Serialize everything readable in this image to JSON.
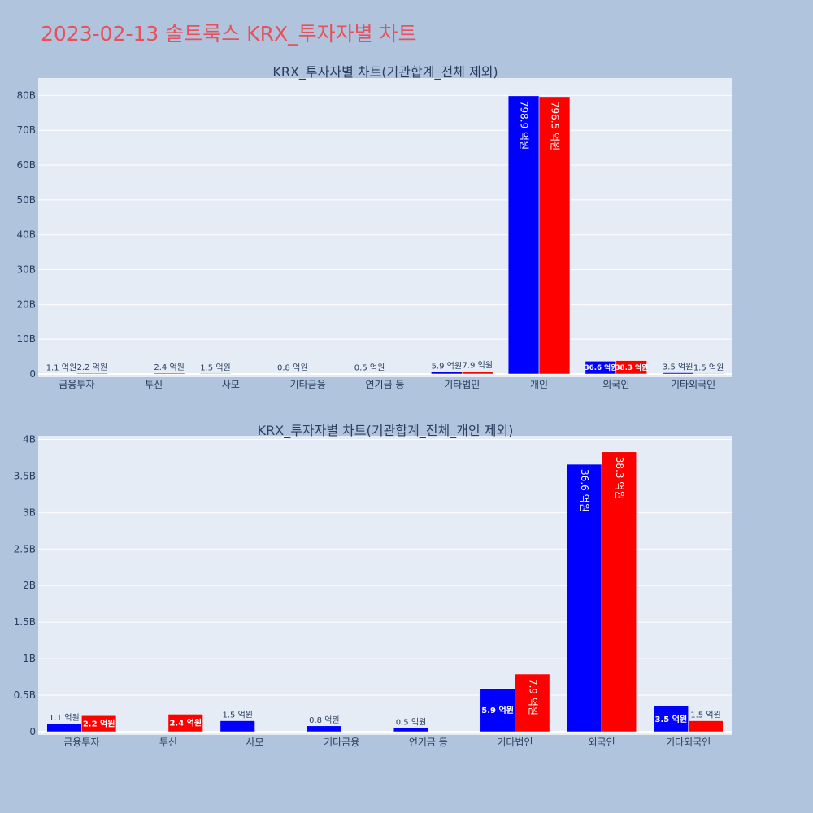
{
  "page": {
    "title": "2023-02-13 솔트룩스 KRX_투자자별 차트"
  },
  "colors": {
    "background": "#b0c4de",
    "plot_bg": "#e5ecf6",
    "grid": "#ffffff",
    "title": "#e8505b",
    "buy": "#0000ff",
    "sell": "#ff0000",
    "text": "#2a3f5f"
  },
  "chart_data": [
    {
      "type": "bar",
      "title": "KRX_투자자별 차트(기관합계_전체 제외)",
      "categories": [
        "금융투자",
        "투신",
        "사모",
        "기타금융",
        "연기금 등",
        "기타법인",
        "개인",
        "외국인",
        "기타외국인"
      ],
      "series": [
        {
          "color": "#0000ff",
          "values": [
            110000000,
            null,
            150000000,
            80000000,
            50000000,
            590000000,
            79890000000,
            3660000000,
            350000000
          ],
          "labels": [
            "1.1 억원",
            null,
            "1.5 억원",
            "0.8 억원",
            "0.5 억원",
            "5.9 억원",
            "798.9 억원",
            "36.6 억원",
            "3.5 억원"
          ]
        },
        {
          "color": "#ff0000",
          "values": [
            220000000,
            240000000,
            null,
            null,
            null,
            790000000,
            79650000000,
            3830000000,
            150000000
          ],
          "labels": [
            "2.2 억원",
            "2.4 억원",
            null,
            null,
            null,
            "7.9 억원",
            "796.5 억원",
            "38.3 억원",
            "1.5 억원"
          ]
        }
      ],
      "yticks": [
        0,
        10000000000,
        20000000000,
        30000000000,
        40000000000,
        50000000000,
        60000000000,
        70000000000,
        80000000000
      ],
      "ytick_labels": [
        "0",
        "10B",
        "20B",
        "30B",
        "40B",
        "50B",
        "60B",
        "70B",
        "80B"
      ],
      "ylim": [
        0,
        85000000000
      ],
      "grid": true,
      "legend": "none"
    },
    {
      "type": "bar",
      "title": "KRX_투자자별 차트(기관합계_전체_개인 제외)",
      "categories": [
        "금융투자",
        "투신",
        "사모",
        "기타금융",
        "연기금 등",
        "기타법인",
        "외국인",
        "기타외국인"
      ],
      "series": [
        {
          "color": "#0000ff",
          "values": [
            110000000,
            null,
            150000000,
            80000000,
            50000000,
            590000000,
            3660000000,
            350000000
          ],
          "labels": [
            "1.1 억원",
            null,
            "1.5 억원",
            "0.8 억원",
            "0.5 억원",
            "5.9 억원",
            "36.6 억원",
            "3.5 억원"
          ]
        },
        {
          "color": "#ff0000",
          "values": [
            220000000,
            240000000,
            null,
            null,
            null,
            790000000,
            3830000000,
            150000000
          ],
          "labels": [
            "2.2 억원",
            "2.4 억원",
            null,
            null,
            null,
            "7.9 억원",
            "38.3 억원",
            "1.5 억원"
          ]
        }
      ],
      "yticks": [
        0,
        500000000,
        1000000000,
        1500000000,
        2000000000,
        2500000000,
        3000000000,
        3500000000,
        4000000000
      ],
      "ytick_labels": [
        "0",
        "0.5B",
        "1B",
        "1.5B",
        "2B",
        "2.5B",
        "3B",
        "3.5B",
        "4B"
      ],
      "ylim": [
        0,
        4050000000
      ],
      "grid": true,
      "legend": "none"
    }
  ]
}
